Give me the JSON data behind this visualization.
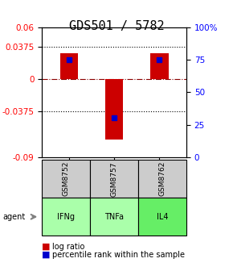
{
  "title": "GDS501 / 5782",
  "samples": [
    "GSM8752",
    "GSM8757",
    "GSM8762"
  ],
  "agents": [
    "IFNg",
    "TNFa",
    "IL4"
  ],
  "log_ratios": [
    0.03,
    -0.07,
    0.03
  ],
  "percentile_ranks": [
    75,
    30,
    75
  ],
  "ylim_left": [
    -0.09,
    0.06
  ],
  "ylim_right": [
    0,
    100
  ],
  "yticks_left": [
    -0.09,
    -0.0375,
    0,
    0.0375,
    0.06
  ],
  "yticks_right": [
    0,
    25,
    50,
    75,
    100
  ],
  "ytick_labels_left": [
    "-0.09",
    "-0.0375",
    "0",
    "0.0375",
    "0.06"
  ],
  "ytick_labels_right": [
    "0",
    "25",
    "50",
    "75",
    "100%"
  ],
  "hlines": [
    -0.0375,
    0.0375
  ],
  "bar_color": "#cc0000",
  "dot_color": "#0000cc",
  "cell_color_gray": "#cccccc",
  "cell_color_green_light": "#aaffaa",
  "cell_color_green_mid": "#66ee66",
  "agent_colors": [
    "#aaffaa",
    "#aaffaa",
    "#66ee66"
  ],
  "bar_width": 0.4,
  "title_fontsize": 11,
  "tick_fontsize": 7.5,
  "label_fontsize": 7,
  "legend_fontsize": 7
}
